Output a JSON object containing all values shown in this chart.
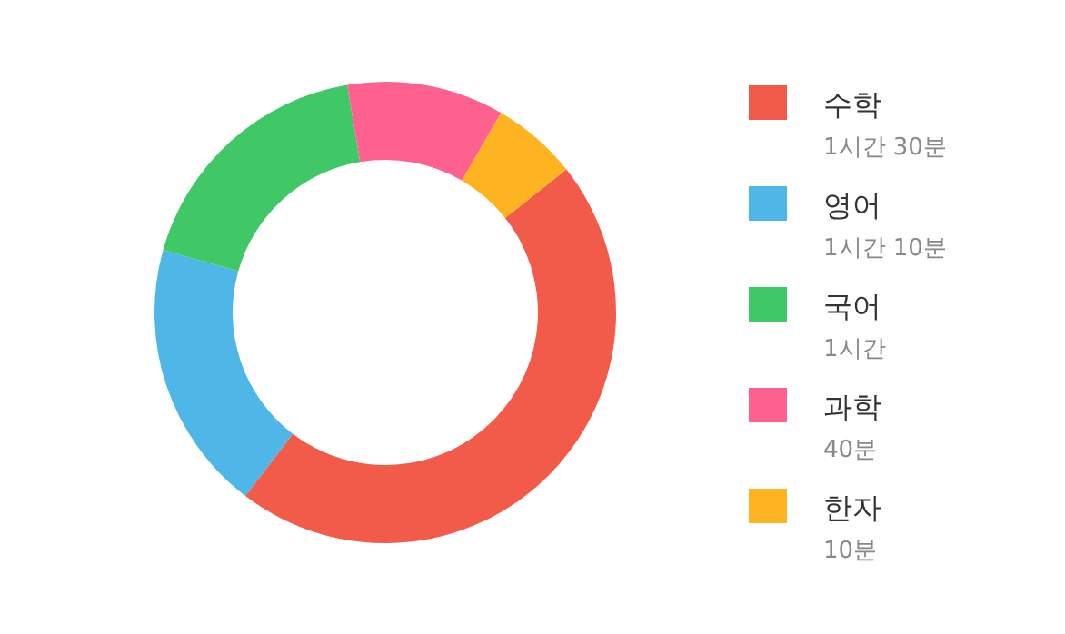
{
  "chart_data": {
    "type": "donut",
    "categories": [
      "수학",
      "영어",
      "국어",
      "과학",
      "한자"
    ],
    "values": [
      46,
      19,
      18,
      11,
      6
    ],
    "annotations": [
      "1시간 30분",
      "1시간 10분",
      "1시간",
      "40분",
      "10분"
    ],
    "colors": [
      "#f25b4a",
      "#4fb6e8",
      "#40c866",
      "#fe6090",
      "#fdb420"
    ],
    "legend": "right"
  }
}
